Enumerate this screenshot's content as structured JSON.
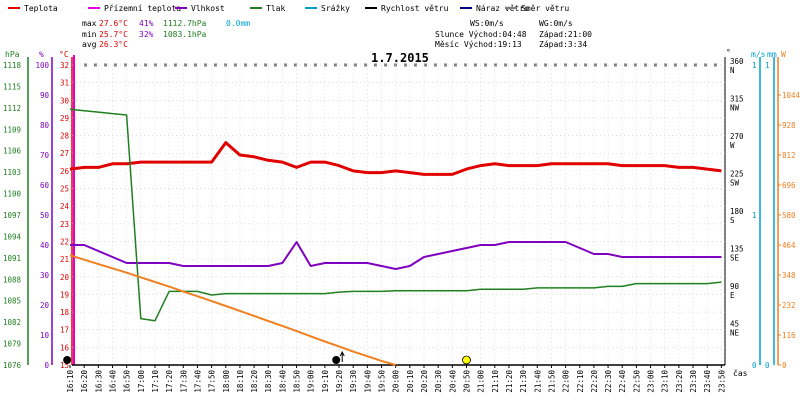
{
  "chart_data": {
    "type": "line",
    "title": "1.7.2015",
    "legend": [
      {
        "label": "Teplota",
        "color": "#e00000"
      },
      {
        "label": "Přízemní teplota",
        "color": "#e000e0"
      },
      {
        "label": "Vlhkost",
        "color": "#8000c0"
      },
      {
        "label": "Tlak",
        "color": "#208020"
      },
      {
        "label": "Srážky",
        "color": "#00a0d0"
      },
      {
        "label": "Rychlost větru",
        "color": "#000000"
      },
      {
        "label": "Náraz větru",
        "color": "#000080"
      },
      {
        "label": "Směr větru",
        "color": "#808080"
      }
    ],
    "stats": {
      "max_label": "max",
      "max_temp": "27.6°C",
      "max_hum": "41%",
      "max_pres": "1112.7hPa",
      "max_rain": "0.0mm",
      "min_label": "min",
      "min_temp": "25.7°C",
      "min_hum": "32%",
      "min_pres": "1083.1hPa",
      "avg_label": "avg",
      "avg_temp": "26.3°C"
    },
    "info": {
      "ws": "WS:0m/s",
      "wg": "WG:0m/s",
      "sun": "Slunce Východ:04:48",
      "sun_set": "Západ:21:00",
      "moon": "Měsíc  Východ:19:13",
      "moon_set": "Západ:3:34"
    },
    "axis_units": {
      "pressure": "hPa",
      "humidity": "%",
      "temperature": "°C",
      "direction": "°",
      "wind": "m/s",
      "rain": "mm",
      "solar": "W",
      "time": "čas"
    },
    "y_ticks": {
      "pressure": [
        "1076",
        "1079",
        "1082",
        "1085",
        "1088",
        "1091",
        "1094",
        "1097",
        "1100",
        "1103",
        "1106",
        "1109",
        "1112",
        "1115",
        "1118"
      ],
      "humidity": [
        "0",
        "10",
        "20",
        "30",
        "40",
        "50",
        "60",
        "70",
        "80",
        "90",
        "100"
      ],
      "temperature": [
        "15",
        "16",
        "17",
        "18",
        "19",
        "20",
        "21",
        "22",
        "23",
        "24",
        "25",
        "26",
        "27",
        "28",
        "29",
        "30",
        "31",
        "32"
      ],
      "direction": [
        {
          "deg": "45",
          "dir": "NE"
        },
        {
          "deg": "90",
          "dir": "E"
        },
        {
          "deg": "135",
          "dir": "SE"
        },
        {
          "deg": "180",
          "dir": "S"
        },
        {
          "deg": "225",
          "dir": "SW"
        },
        {
          "deg": "270",
          "dir": "W"
        },
        {
          "deg": "315",
          "dir": "NW"
        },
        {
          "deg": "360",
          "dir": "N"
        }
      ],
      "wind_top": "1",
      "wind_mid": "1",
      "wind_bottom": "0",
      "rain_top": "1",
      "rain_bottom": "0",
      "solar": [
        "0",
        "116",
        "232",
        "348",
        "464",
        "580",
        "696",
        "812",
        "928",
        "1044"
      ]
    },
    "x_labels": [
      "16:10",
      "16:20",
      "16:30",
      "16:40",
      "16:50",
      "17:00",
      "17:10",
      "17:20",
      "17:30",
      "17:40",
      "17:50",
      "18:00",
      "18:10",
      "18:20",
      "18:30",
      "18:40",
      "18:50",
      "19:00",
      "19:10",
      "19:20",
      "19:30",
      "19:40",
      "19:50",
      "20:00",
      "20:10",
      "20:20",
      "20:30",
      "20:40",
      "20:50",
      "21:00",
      "21:10",
      "21:20",
      "21:30",
      "21:40",
      "21:50",
      "22:00",
      "22:10",
      "22:20",
      "22:30",
      "22:40",
      "22:50",
      "23:00",
      "23:10",
      "23:20",
      "23:30",
      "23:40",
      "23:50"
    ],
    "series": [
      {
        "name": "Teplota",
        "axis": "temperature",
        "color": "#e00000",
        "width": 3,
        "values": [
          26.1,
          26.2,
          26.2,
          26.4,
          26.4,
          26.5,
          26.5,
          26.5,
          26.5,
          26.5,
          26.5,
          27.6,
          26.9,
          26.8,
          26.6,
          26.5,
          26.2,
          26.5,
          26.5,
          26.3,
          26.0,
          25.9,
          25.9,
          26.0,
          25.9,
          25.8,
          25.8,
          25.8,
          26.1,
          26.3,
          26.4,
          26.3,
          26.3,
          26.3,
          26.4,
          26.4,
          26.4,
          26.4,
          26.4,
          26.3,
          26.3,
          26.3,
          26.3,
          26.2,
          26.2,
          26.1,
          26.0
        ]
      },
      {
        "name": "Vlhkost",
        "axis": "humidity",
        "color": "#8000c0",
        "width": 2,
        "values": [
          40,
          40,
          38,
          36,
          34,
          34,
          34,
          34,
          33,
          33,
          33,
          33,
          33,
          33,
          33,
          34,
          41,
          33,
          34,
          34,
          34,
          34,
          33,
          32,
          33,
          36,
          37,
          38,
          39,
          40,
          40,
          41,
          41,
          41,
          41,
          41,
          39,
          37,
          37,
          36,
          36,
          36,
          36,
          36,
          36,
          36,
          36
        ]
      },
      {
        "name": "Tlak",
        "axis": "pressure",
        "color": "#208020",
        "width": 1.5,
        "values": [
          1111.8,
          1111.6,
          1111.4,
          1111.2,
          1111.0,
          1082.5,
          1082.2,
          1086.3,
          1086.3,
          1086.3,
          1085.8,
          1086.0,
          1086.0,
          1086.0,
          1086.0,
          1086.0,
          1086.0,
          1086.0,
          1086.0,
          1086.2,
          1086.3,
          1086.3,
          1086.3,
          1086.4,
          1086.4,
          1086.4,
          1086.4,
          1086.4,
          1086.4,
          1086.6,
          1086.6,
          1086.6,
          1086.6,
          1086.8,
          1086.8,
          1086.8,
          1086.8,
          1086.8,
          1087.0,
          1087.0,
          1087.4,
          1087.4,
          1087.4,
          1087.4,
          1087.4,
          1087.4,
          1087.6
        ]
      },
      {
        "name": "Solar",
        "axis": "solar",
        "color": "#f08020",
        "width": 2,
        "values": [
          424,
          407,
          390,
          374,
          357,
          339,
          321,
          303,
          284,
          266,
          247,
          228,
          209,
          190,
          170,
          151,
          131,
          111,
          91,
          72,
          52,
          34,
          16,
          0
        ]
      }
    ],
    "markers": [
      {
        "time_index": -0.2,
        "type": "black-dot"
      },
      {
        "time_index": 18.8,
        "type": "black-dot-arrow"
      },
      {
        "time_index": 28.0,
        "type": "sun"
      }
    ]
  }
}
